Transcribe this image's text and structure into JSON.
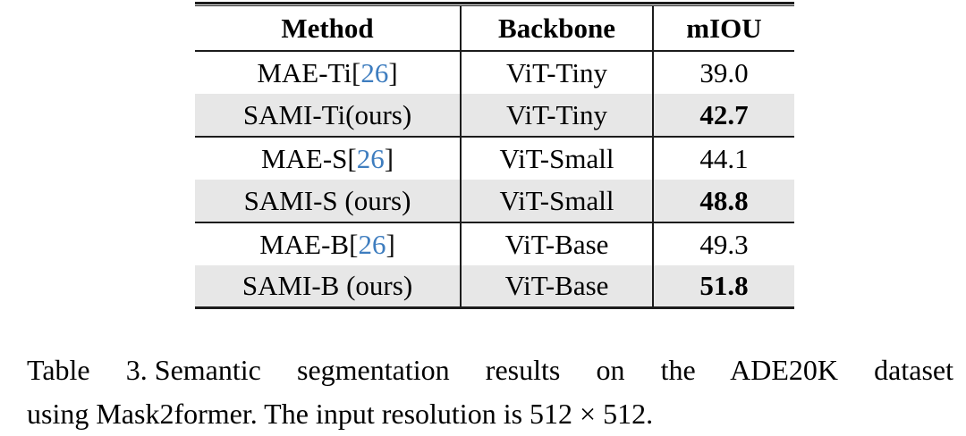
{
  "table": {
    "headers": {
      "method": "Method",
      "backbone": "Backbone",
      "miou": "mIOU"
    },
    "rows": [
      {
        "method": "MAE-Ti",
        "cite_open": "[",
        "cite": "26",
        "cite_close": "]",
        "backbone": "ViT-Tiny",
        "miou": "39.0"
      },
      {
        "method": "SAMI-Ti(ours)",
        "cite_open": "",
        "cite": "",
        "cite_close": "",
        "backbone": "ViT-Tiny",
        "miou": "42.7"
      },
      {
        "method": "MAE-S",
        "cite_open": "[",
        "cite": "26",
        "cite_close": "]",
        "backbone": "ViT-Small",
        "miou": "44.1"
      },
      {
        "method": "SAMI-S (ours)",
        "cite_open": "",
        "cite": "",
        "cite_close": "",
        "backbone": "ViT-Small",
        "miou": "48.8"
      },
      {
        "method": "MAE-B",
        "cite_open": "[",
        "cite": "26",
        "cite_close": "]",
        "backbone": "ViT-Base",
        "miou": "49.3"
      },
      {
        "method": "SAMI-B (ours)",
        "cite_open": "",
        "cite": "",
        "cite_close": "",
        "backbone": "ViT-Base",
        "miou": "51.8"
      }
    ]
  },
  "caption": {
    "label": "Table 3.",
    "line1": "Semantic segmentation results on the ADE20K dataset",
    "line2": "using Mask2former. The input resolution is 512 × 512."
  },
  "colors": {
    "cite_blue": "#3e7dbf",
    "row_shade": "#e7e7e7",
    "rule": "#1c1c1c"
  }
}
